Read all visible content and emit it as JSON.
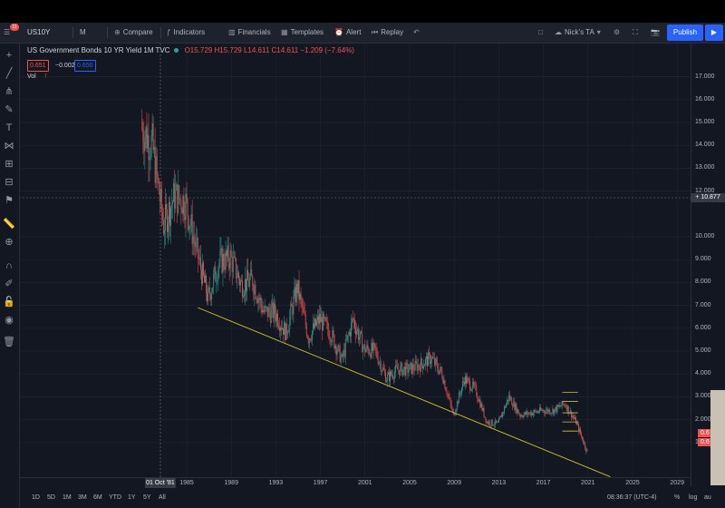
{
  "toolbar": {
    "badge": "11",
    "symbol": "US10Y",
    "interval": "M",
    "compare": "Compare",
    "indicators": "Indicators",
    "financials": "Financials",
    "templates": "Templates",
    "alert": "Alert",
    "replay": "Replay",
    "layout_name": "Nick's TA",
    "publish": "Publish"
  },
  "legend": {
    "title": "US Government Bonds 10 YR Yield  1M  TVC",
    "ohlc": "O15.729 H15.729 L14.611 C14.611 −1.209 (−7.64%)",
    "bid": "0.651",
    "change": "−0.002",
    "ask": "0.650",
    "vol": "Vol",
    "vol_warning": "!"
  },
  "price_axis": {
    "ticks": [
      "17.000",
      "16.000",
      "15.000",
      "14.000",
      "13.000",
      "12.000",
      "10.000",
      "9.000",
      "8.000",
      "7.000",
      "6.000",
      "5.000",
      "4.000",
      "3.000",
      "2.000",
      "1.000"
    ],
    "crosshair_price": "10.877",
    "last_price_1": "0.6",
    "last_price_2": "0.6"
  },
  "time_axis": {
    "ticks": [
      "1985",
      "1989",
      "1993",
      "1997",
      "2001",
      "2005",
      "2009",
      "2013",
      "2017",
      "2021",
      "2025",
      "2029"
    ],
    "crosshair_date": "01 Oct '81"
  },
  "bottom": {
    "ranges": [
      "1D",
      "5D",
      "1M",
      "3M",
      "6M",
      "YTD",
      "1Y",
      "5Y",
      "All"
    ],
    "clock": "08:36:37 (UTC-4)",
    "pct": "%",
    "log": "log",
    "auto": "au"
  },
  "colors": {
    "background": "#131722",
    "up": "#26a69a",
    "down": "#ef5350",
    "trendline": "#d4c12c",
    "accent": "#2962ff"
  },
  "chart_data": {
    "type": "candlestick",
    "series": [
      {
        "name": "US10Y",
        "x": [
          1981,
          1982,
          1983,
          1984,
          1985,
          1986,
          1987,
          1988,
          1989,
          1990,
          1991,
          1992,
          1993,
          1994,
          1995,
          1996,
          1997,
          1998,
          1999,
          2000,
          2001,
          2002,
          2003,
          2004,
          2005,
          2006,
          2007,
          2008,
          2009,
          2010,
          2011,
          2012,
          2013,
          2014,
          2015,
          2016,
          2017,
          2018,
          2019,
          2020
        ],
        "close": [
          14.0,
          10.5,
          11.8,
          11.5,
          9.3,
          7.3,
          8.9,
          9.1,
          7.9,
          8.1,
          6.7,
          6.7,
          5.8,
          7.8,
          5.6,
          6.4,
          5.8,
          4.6,
          6.4,
          5.1,
          5.0,
          3.8,
          4.2,
          4.2,
          4.4,
          4.7,
          4.0,
          2.2,
          3.8,
          3.3,
          1.9,
          1.8,
          3.0,
          2.2,
          2.3,
          2.4,
          2.4,
          2.7,
          1.9,
          0.65
        ]
      }
    ],
    "trendline": {
      "x": [
        1986,
        2023
      ],
      "y": [
        6.9,
        -0.5
      ]
    },
    "ylim": [
      -1,
      17.5
    ],
    "xlim": [
      1976,
      2030
    ],
    "grid": true
  }
}
